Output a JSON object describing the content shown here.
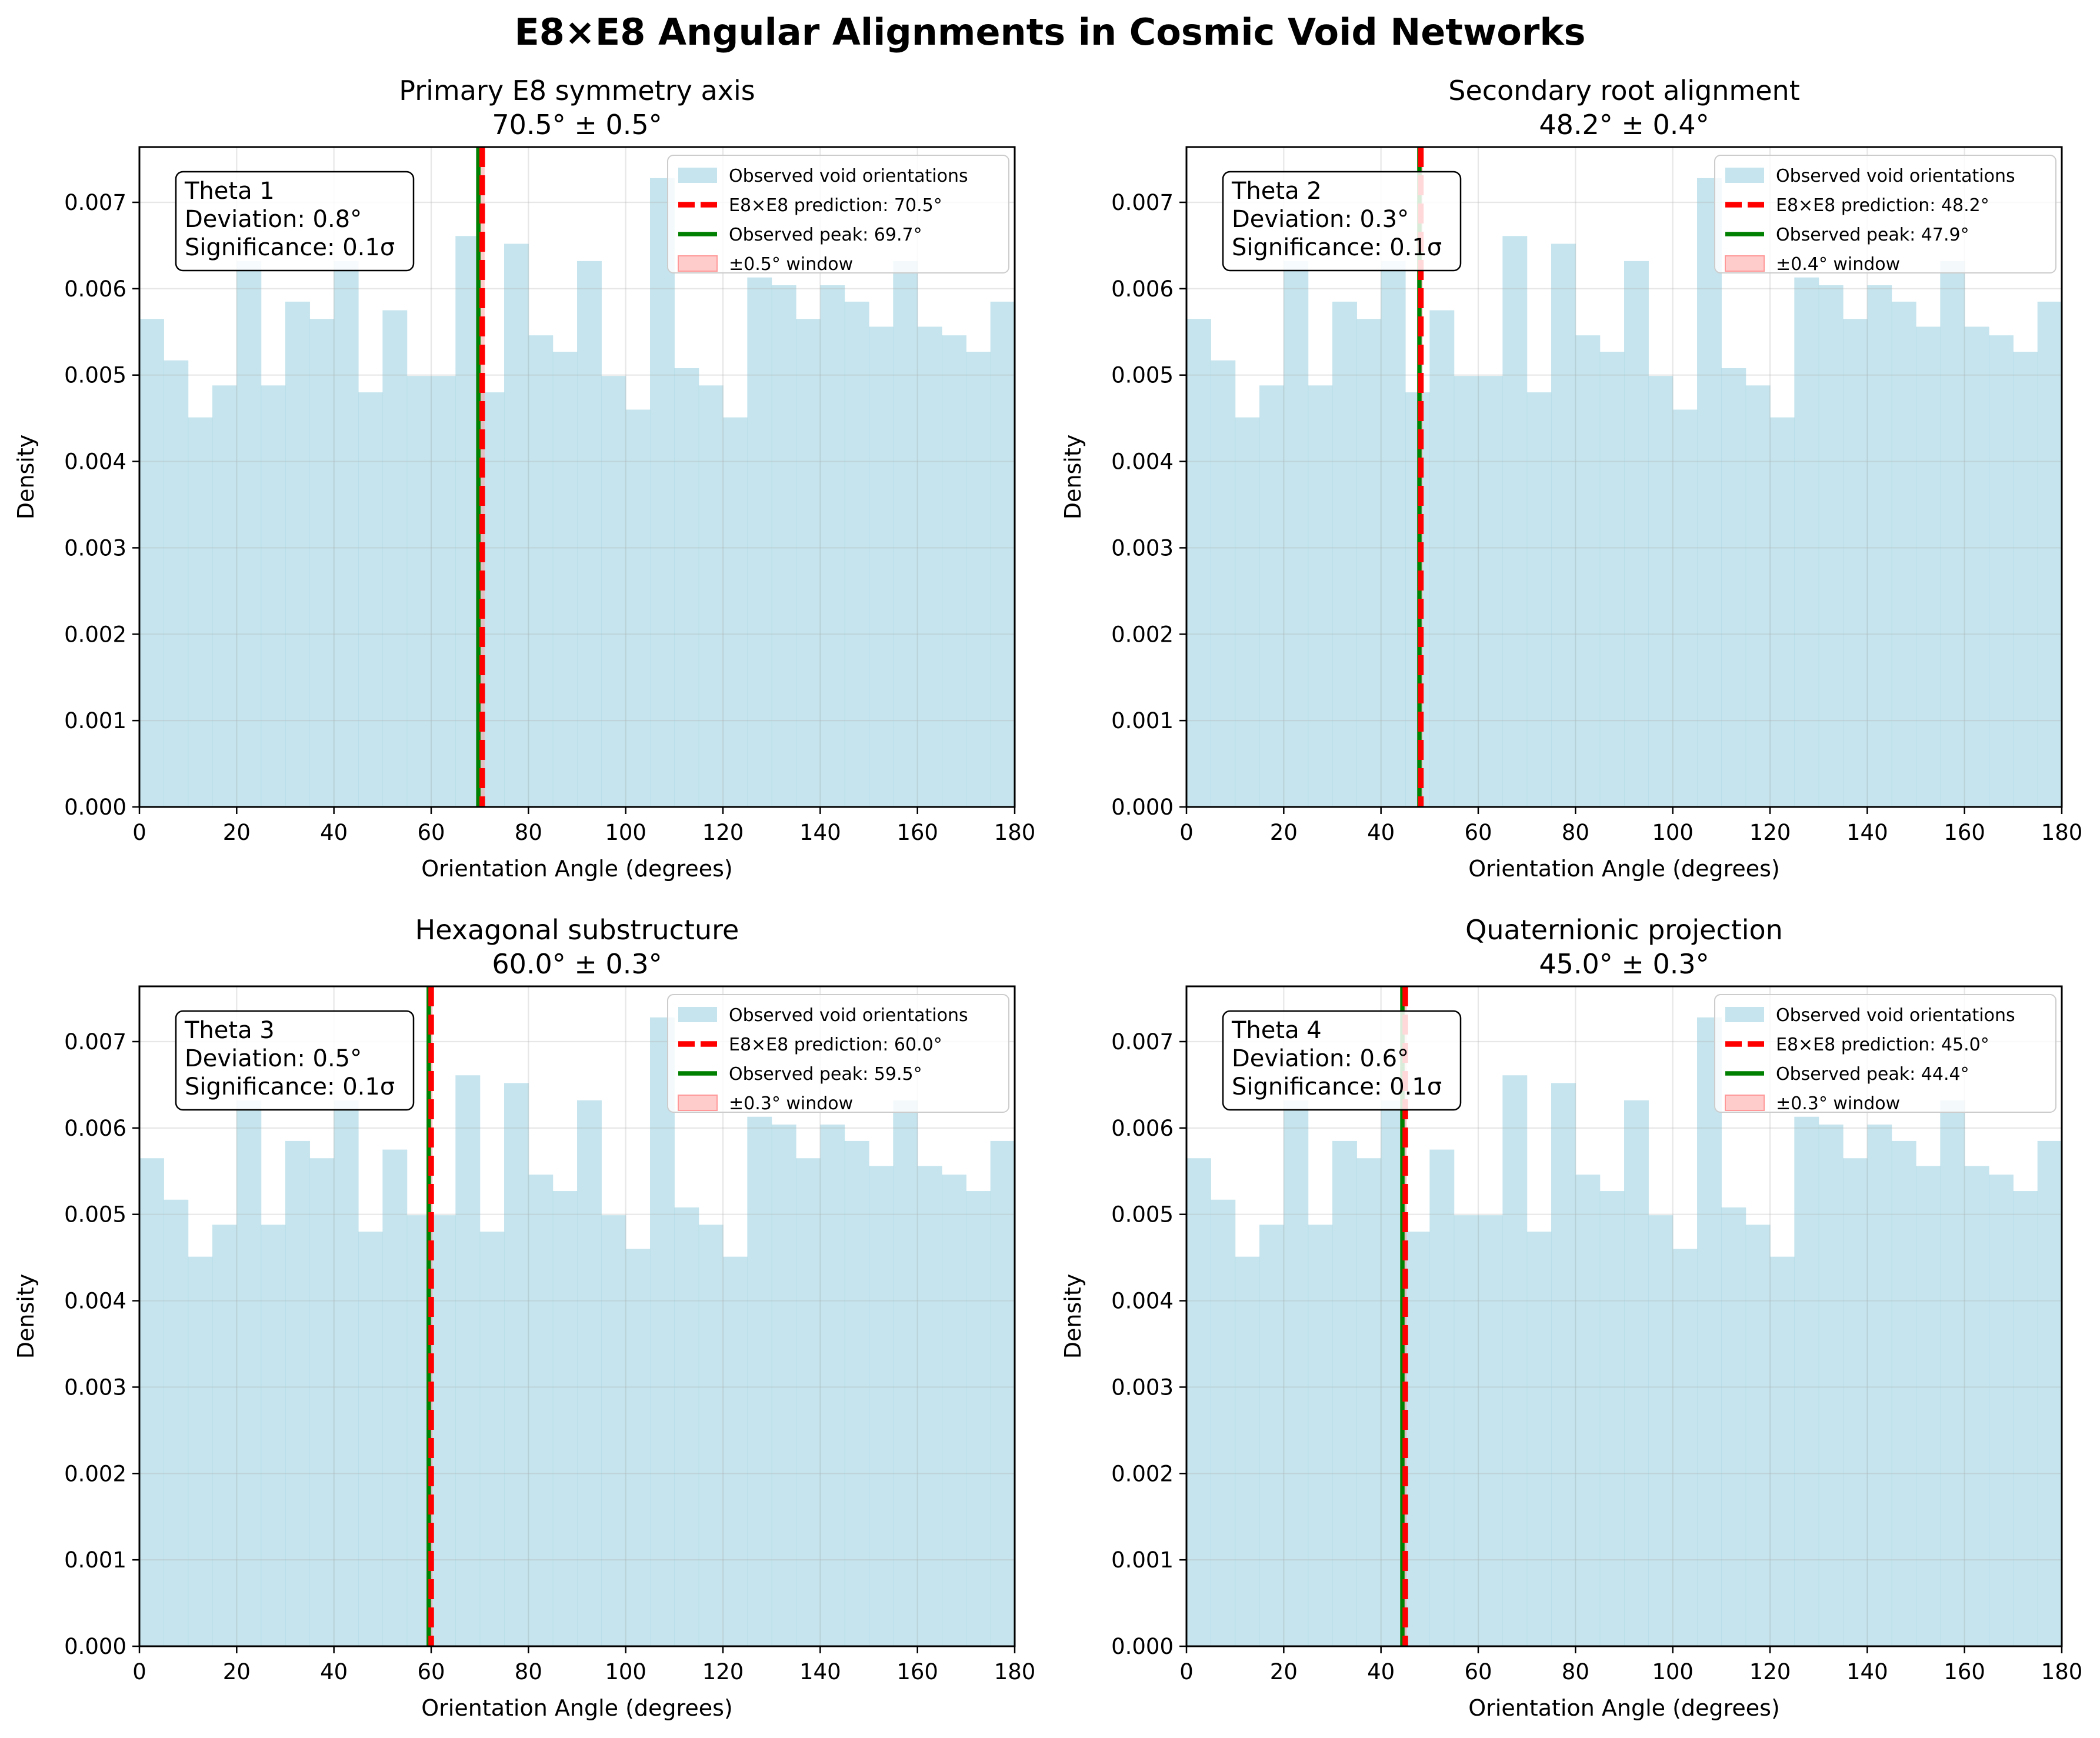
{
  "figure": {
    "suptitle": "E8×E8 Angular Alignments in Cosmic Void Networks"
  },
  "colors": {
    "bars": "#add8e6",
    "prediction": "#ff0000",
    "observed": "#008000",
    "window": "#ff9999"
  },
  "shared": {
    "bin_edges": [
      0,
      5,
      10,
      15,
      20,
      25,
      30,
      35,
      40,
      45,
      50,
      55,
      60,
      65,
      70,
      75,
      80,
      85,
      90,
      95,
      100,
      105,
      110,
      115,
      120,
      125,
      130,
      135,
      140,
      145,
      150,
      155,
      160,
      165,
      170,
      175,
      180
    ],
    "densities": [
      0.00565,
      0.00517,
      0.00451,
      0.00488,
      0.00632,
      0.00488,
      0.00585,
      0.00565,
      0.00632,
      0.0048,
      0.00575,
      0.00499,
      0.00499,
      0.00661,
      0.0048,
      0.00652,
      0.00546,
      0.00527,
      0.00632,
      0.00499,
      0.0046,
      0.00728,
      0.00508,
      0.00488,
      0.00451,
      0.00613,
      0.00604,
      0.00565,
      0.00604,
      0.00585,
      0.00556,
      0.00632,
      0.00556,
      0.00546,
      0.00527,
      0.00585
    ],
    "xlabel": "Orientation Angle (degrees)",
    "ylabel": "Density",
    "xticks": [
      "0",
      "20",
      "40",
      "60",
      "80",
      "100",
      "120",
      "140",
      "160",
      "180"
    ],
    "yticks": [
      "0.000",
      "0.001",
      "0.002",
      "0.003",
      "0.004",
      "0.005",
      "0.006",
      "0.007"
    ],
    "xlim": [
      0,
      180
    ],
    "ylim": [
      0,
      0.00764
    ],
    "legend_bars": "Observed void orientations"
  },
  "chart_data": [
    {
      "type": "bar",
      "title": "Primary E8 symmetry axis",
      "subtitle": "70.5° ± 0.5°",
      "predicted": 70.5,
      "observed": 69.7,
      "window": 0.5,
      "legend": {
        "prediction": "E8×E8 prediction: 70.5°",
        "observed": "Observed peak: 69.7°",
        "window": "±0.5° window"
      },
      "info": [
        "Theta 1",
        "Deviation: 0.8°",
        "Significance: 0.1σ"
      ],
      "legend_position": "top-right",
      "grid": true
    },
    {
      "type": "bar",
      "title": "Secondary root alignment",
      "subtitle": "48.2° ± 0.4°",
      "predicted": 48.2,
      "observed": 47.9,
      "window": 0.4,
      "legend": {
        "prediction": "E8×E8 prediction: 48.2°",
        "observed": "Observed peak: 47.9°",
        "window": "±0.4° window"
      },
      "info": [
        "Theta 2",
        "Deviation: 0.3°",
        "Significance: 0.1σ"
      ],
      "legend_position": "top-right",
      "grid": true
    },
    {
      "type": "bar",
      "title": "Hexagonal substructure",
      "subtitle": "60.0° ± 0.3°",
      "predicted": 60.0,
      "observed": 59.5,
      "window": 0.3,
      "legend": {
        "prediction": "E8×E8 prediction: 60.0°",
        "observed": "Observed peak: 59.5°",
        "window": "±0.3° window"
      },
      "info": [
        "Theta 3",
        "Deviation: 0.5°",
        "Significance: 0.1σ"
      ],
      "legend_position": "top-right",
      "grid": true
    },
    {
      "type": "bar",
      "title": "Quaternionic projection",
      "subtitle": "45.0° ± 0.3°",
      "predicted": 45.0,
      "observed": 44.4,
      "window": 0.3,
      "legend": {
        "prediction": "E8×E8 prediction: 45.0°",
        "observed": "Observed peak: 44.4°",
        "window": "±0.3° window"
      },
      "info": [
        "Theta 4",
        "Deviation: 0.6°",
        "Significance: 0.1σ"
      ],
      "legend_position": "top-right",
      "grid": true
    }
  ]
}
